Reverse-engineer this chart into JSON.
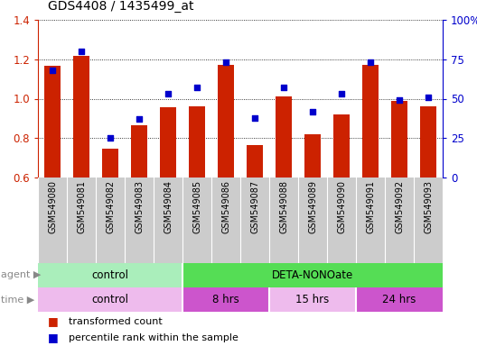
{
  "title": "GDS4408 / 1435499_at",
  "samples": [
    "GSM549080",
    "GSM549081",
    "GSM549082",
    "GSM549083",
    "GSM549084",
    "GSM549085",
    "GSM549086",
    "GSM549087",
    "GSM549088",
    "GSM549089",
    "GSM549090",
    "GSM549091",
    "GSM549092",
    "GSM549093"
  ],
  "bar_values": [
    1.165,
    1.215,
    0.745,
    0.865,
    0.955,
    0.96,
    1.17,
    0.765,
    1.01,
    0.82,
    0.92,
    1.17,
    0.99,
    0.96
  ],
  "dot_values": [
    68,
    80,
    25,
    37,
    53,
    57,
    73,
    38,
    57,
    42,
    53,
    73,
    49,
    51
  ],
  "ylim_left": [
    0.6,
    1.4
  ],
  "ylim_right": [
    0,
    100
  ],
  "yticks_left": [
    0.6,
    0.8,
    1.0,
    1.2,
    1.4
  ],
  "yticks_right": [
    0,
    25,
    50,
    75,
    100
  ],
  "ytick_labels_right": [
    "0",
    "25",
    "50",
    "75",
    "100%"
  ],
  "bar_color": "#cc2200",
  "dot_color": "#0000cc",
  "agent_row": [
    {
      "label": "control",
      "start": 0,
      "end": 5,
      "color": "#aaeebb"
    },
    {
      "label": "DETA-NONOate",
      "start": 5,
      "end": 14,
      "color": "#55dd55"
    }
  ],
  "time_row": [
    {
      "label": "control",
      "start": 0,
      "end": 5,
      "color": "#eebbed"
    },
    {
      "label": "8 hrs",
      "start": 5,
      "end": 8,
      "color": "#cc55cc"
    },
    {
      "label": "15 hrs",
      "start": 8,
      "end": 11,
      "color": "#eebbed"
    },
    {
      "label": "24 hrs",
      "start": 11,
      "end": 14,
      "color": "#cc55cc"
    }
  ],
  "legend_bar_label": "transformed count",
  "legend_dot_label": "percentile rank within the sample",
  "left_ylabel_color": "#cc2200",
  "right_ylabel_color": "#0000cc",
  "label_bg_color": "#cccccc",
  "fig_w": 5.28,
  "fig_h": 3.84,
  "dpi": 100
}
